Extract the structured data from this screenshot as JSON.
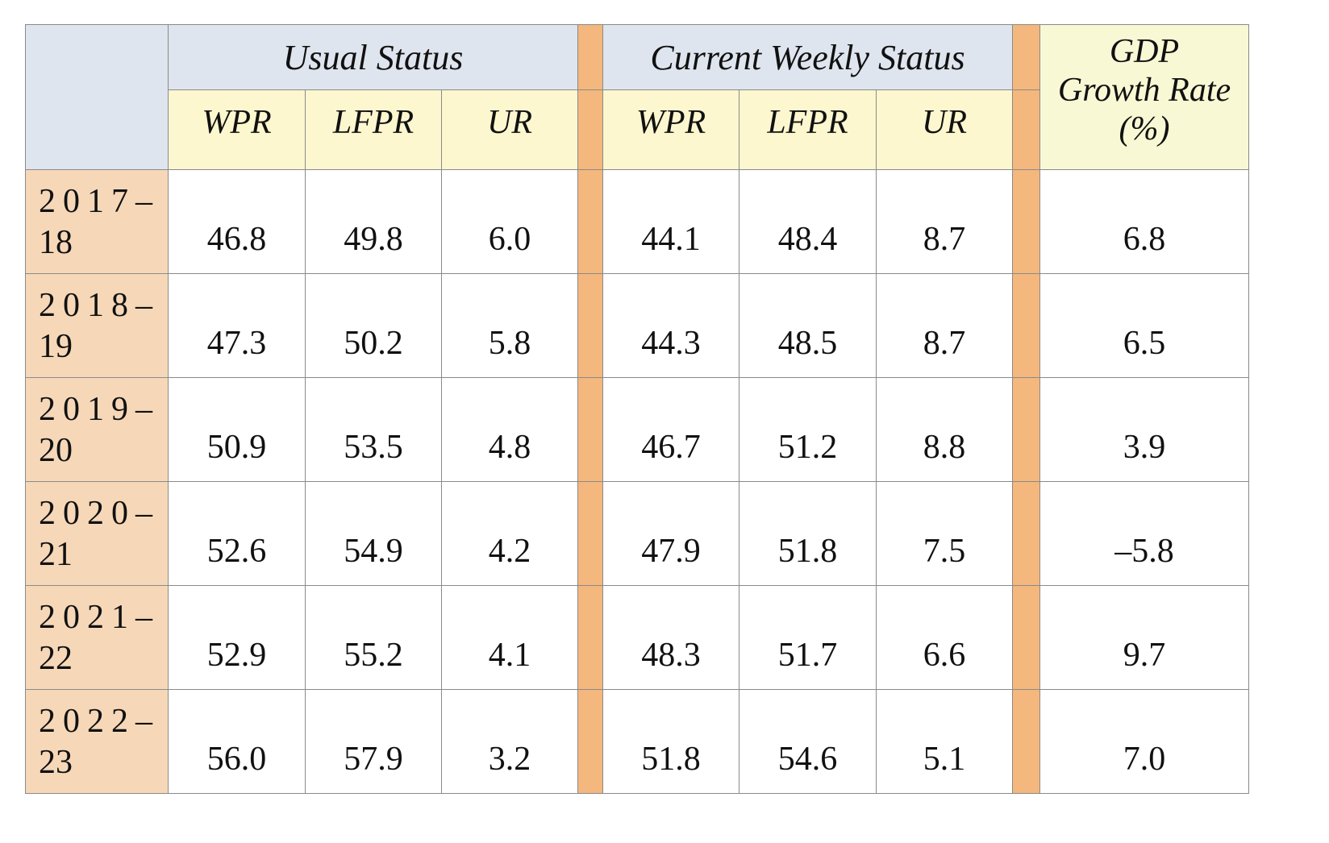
{
  "table": {
    "groups": {
      "usual": "Usual Status",
      "cws": "Current Weekly Status"
    },
    "gdp_header": [
      "GDP",
      "Growth Rate",
      "(%)"
    ],
    "sub_headers": [
      "WPR",
      "LFPR",
      "UR"
    ],
    "rows": [
      {
        "year_top": "2017–",
        "year_bottom": "18",
        "usual": [
          "46.8",
          "49.8",
          "6.0"
        ],
        "cws": [
          "44.1",
          "48.4",
          "8.7"
        ],
        "gdp": "6.8"
      },
      {
        "year_top": "2018–",
        "year_bottom": "19",
        "usual": [
          "47.3",
          "50.2",
          "5.8"
        ],
        "cws": [
          "44.3",
          "48.5",
          "8.7"
        ],
        "gdp": "6.5"
      },
      {
        "year_top": "2019–",
        "year_bottom": "20",
        "usual": [
          "50.9",
          "53.5",
          "4.8"
        ],
        "cws": [
          "46.7",
          "51.2",
          "8.8"
        ],
        "gdp": "3.9"
      },
      {
        "year_top": "2020–",
        "year_bottom": "21",
        "usual": [
          "52.6",
          "54.9",
          "4.2"
        ],
        "cws": [
          "47.9",
          "51.8",
          "7.5"
        ],
        "gdp": "–5.8"
      },
      {
        "year_top": "2021–",
        "year_bottom": "22",
        "usual": [
          "52.9",
          "55.2",
          "4.1"
        ],
        "cws": [
          "48.3",
          "51.7",
          "6.6"
        ],
        "gdp": "9.7"
      },
      {
        "year_top": "2022–",
        "year_bottom": "23",
        "usual": [
          "56.0",
          "57.9",
          "3.2"
        ],
        "cws": [
          "51.8",
          "54.6",
          "5.1"
        ],
        "gdp": "7.0"
      }
    ]
  },
  "colors": {
    "header_blue": "#dfe5ee",
    "subheader_yellow": "#fdf7cf",
    "gdp_header": "#f8f8d5",
    "separator_orange": "#f4b77d",
    "row_header_peach": "#f6d8b8",
    "border": "#8a8a8a"
  }
}
